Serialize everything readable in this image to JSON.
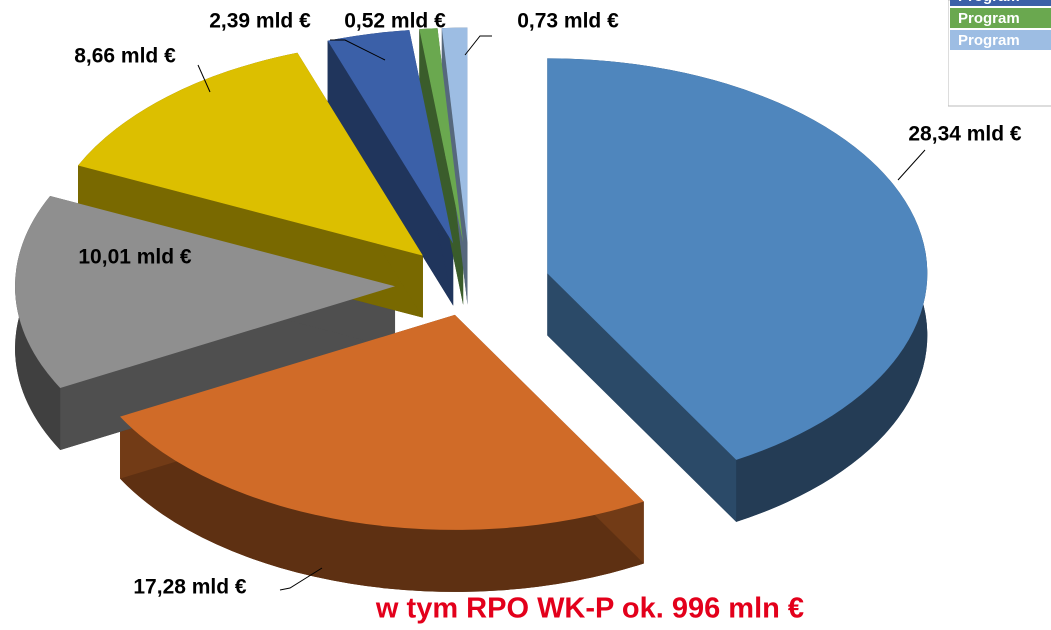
{
  "chart_data": {
    "type": "pie",
    "categories": [
      null,
      null,
      null,
      null,
      "Program",
      "Program",
      "Program"
    ],
    "values": [
      28.34,
      17.28,
      10.01,
      8.66,
      2.39,
      0.52,
      0.73
    ],
    "value_labels": [
      "28,34 mld €",
      "17,28 mld €",
      "10,01 mld €",
      "8,66 mld €",
      "2,39 mld €",
      "0,52 mld €",
      "0,73 mld €"
    ],
    "colors": [
      "#4f86bd",
      "#d06b28",
      "#8f8f8f",
      "#dcbf00",
      "#3b60a8",
      "#6aa84f",
      "#9dbde3"
    ],
    "annotation": "w tym RPO WK-P ok. 996 mln €",
    "annotation_color": "#e3001b"
  }
}
